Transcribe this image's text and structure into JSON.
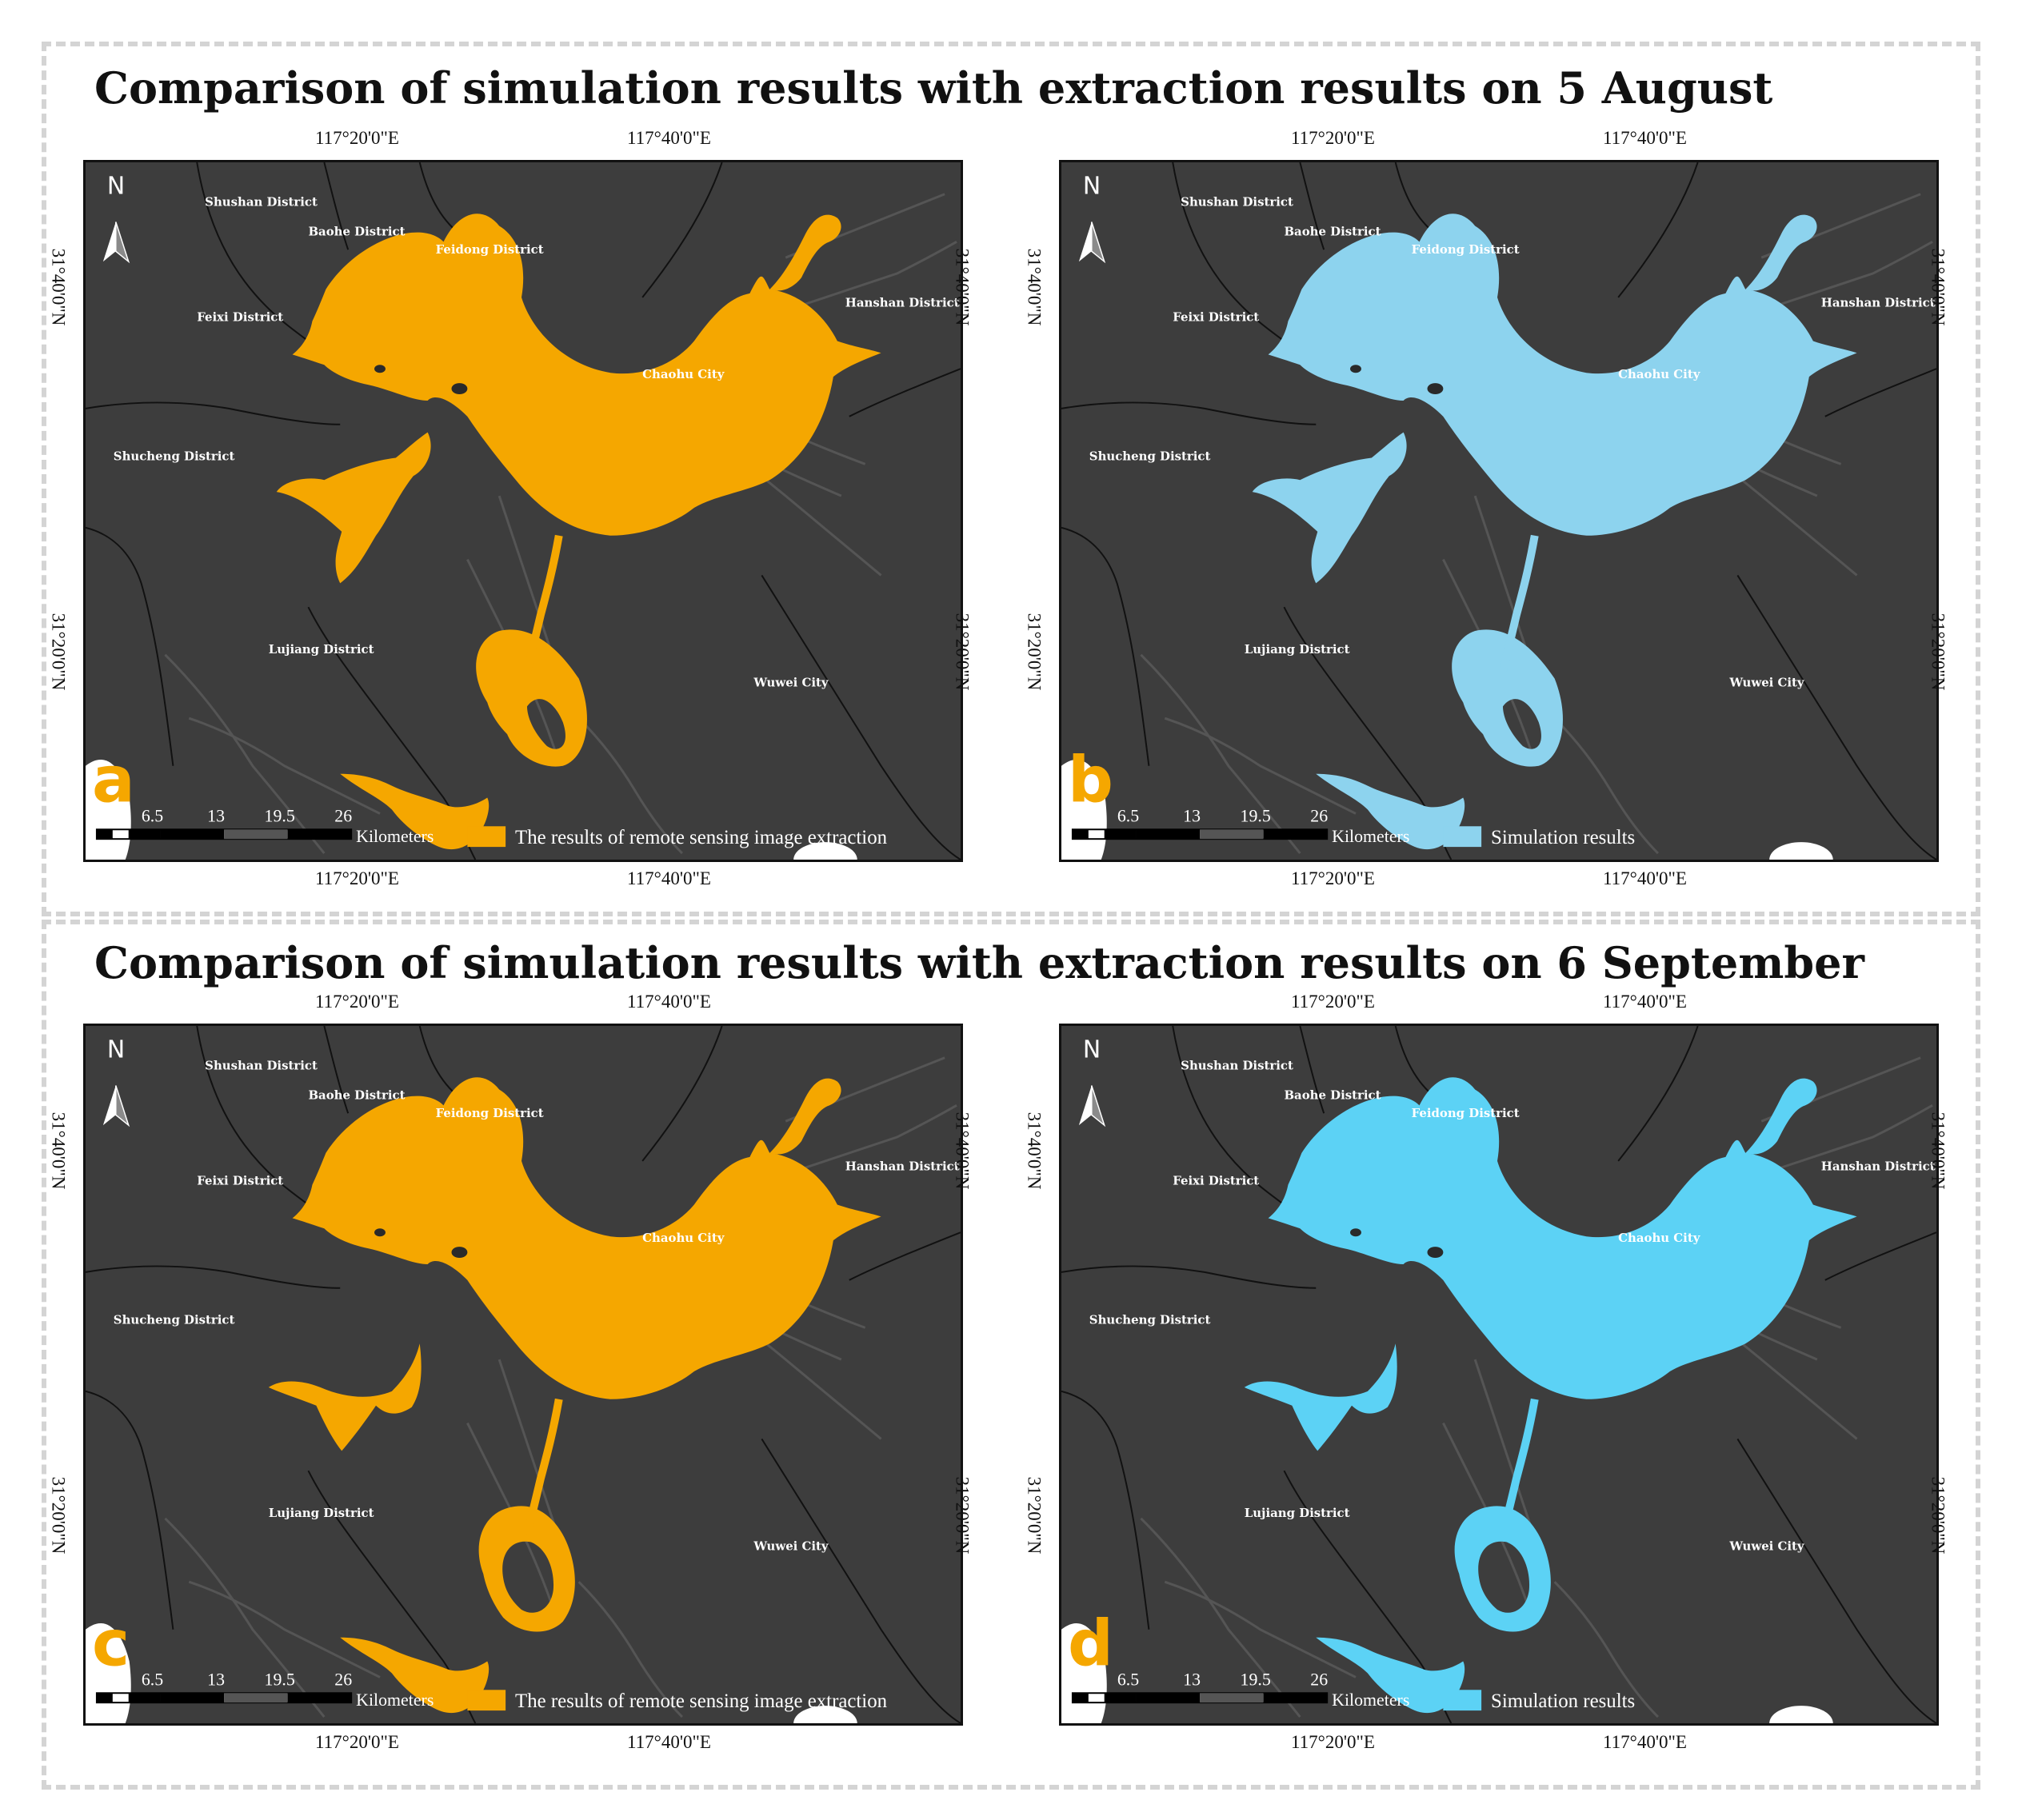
{
  "titles": {
    "top": "Comparison of simulation results with extraction results on 5 August",
    "bottom": "Comparison of simulation results with extraction results on 6 September"
  },
  "coords": {
    "lon_west": "117°20'0\"E",
    "lon_east": "117°40'0\"E",
    "lat_north": "31°40'0\"N",
    "lat_south": "31°20'0\"N"
  },
  "places": {
    "shushan": "Shushan District",
    "baohe": "Baohe District",
    "feidong": "Feidong District",
    "feixi": "Feixi District",
    "hanshan": "Hanshan District",
    "chaohu": "Chaohu City",
    "shucheng": "Shucheng District",
    "lujiang": "Lujiang District",
    "wuwei": "Wuwei City"
  },
  "north_label": "N",
  "scale": {
    "ticks": [
      "6.5",
      "13",
      "19.5",
      "26"
    ],
    "unit": "Kilometers"
  },
  "panels": [
    {
      "letter": "a",
      "legend": "The results of remote sensing image extraction",
      "color": "#f5a700",
      "variant": "aug",
      "kind": "extraction"
    },
    {
      "letter": "b",
      "legend": "Simulation results",
      "color": "#8dd3ee",
      "variant": "aug",
      "kind": "simulation"
    },
    {
      "letter": "c",
      "legend": "The results of remote sensing image extraction",
      "color": "#f5a700",
      "variant": "sep",
      "kind": "extraction"
    },
    {
      "letter": "d",
      "legend": "Simulation results",
      "color": "#5cd2f5",
      "variant": "sep",
      "kind": "simulation"
    }
  ]
}
